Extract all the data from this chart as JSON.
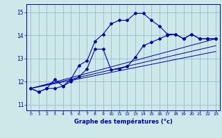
{
  "title": "Graphe des températures (°c)",
  "bg_color": "#cce8e8",
  "grid_color": "#99bbcc",
  "line_color": "#0000aa",
  "ylabel_vals": [
    11,
    12,
    13,
    14,
    15
  ],
  "xlabel_vals": [
    0,
    1,
    2,
    3,
    4,
    5,
    6,
    7,
    8,
    9,
    10,
    11,
    12,
    13,
    14,
    15,
    16,
    17,
    18,
    19,
    20,
    21,
    22,
    23
  ],
  "xlim": [
    -0.5,
    23.5
  ],
  "ylim": [
    10.75,
    15.35
  ],
  "curve1_x": [
    0,
    1,
    2,
    3,
    4,
    5,
    6,
    7,
    8,
    9,
    10,
    11,
    12,
    13,
    14,
    15,
    16,
    17,
    18,
    19,
    20,
    21,
    22,
    23
  ],
  "curve1_y": [
    11.7,
    11.55,
    11.7,
    12.1,
    11.8,
    12.1,
    12.7,
    12.9,
    13.75,
    14.05,
    14.5,
    14.65,
    14.65,
    14.95,
    14.95,
    14.65,
    14.4,
    14.05,
    14.05,
    13.85,
    14.05,
    13.85,
    13.85,
    13.85
  ],
  "curve2_x": [
    0,
    1,
    2,
    3,
    4,
    5,
    6,
    7,
    8,
    9,
    10,
    11,
    12,
    13,
    14,
    15,
    16,
    17,
    18,
    19,
    20,
    21,
    22,
    23
  ],
  "curve2_y": [
    11.7,
    11.55,
    11.7,
    11.7,
    11.8,
    12.0,
    12.2,
    12.55,
    13.4,
    13.4,
    12.5,
    12.55,
    12.65,
    13.05,
    13.55,
    13.7,
    13.85,
    14.0,
    14.05,
    13.85,
    14.05,
    13.85,
    13.85,
    13.85
  ],
  "line1_x": [
    0,
    23
  ],
  "line1_y": [
    11.7,
    13.85
  ],
  "line2_x": [
    0,
    23
  ],
  "line2_y": [
    11.7,
    13.55
  ],
  "line3_x": [
    0,
    23
  ],
  "line3_y": [
    11.7,
    13.3
  ]
}
